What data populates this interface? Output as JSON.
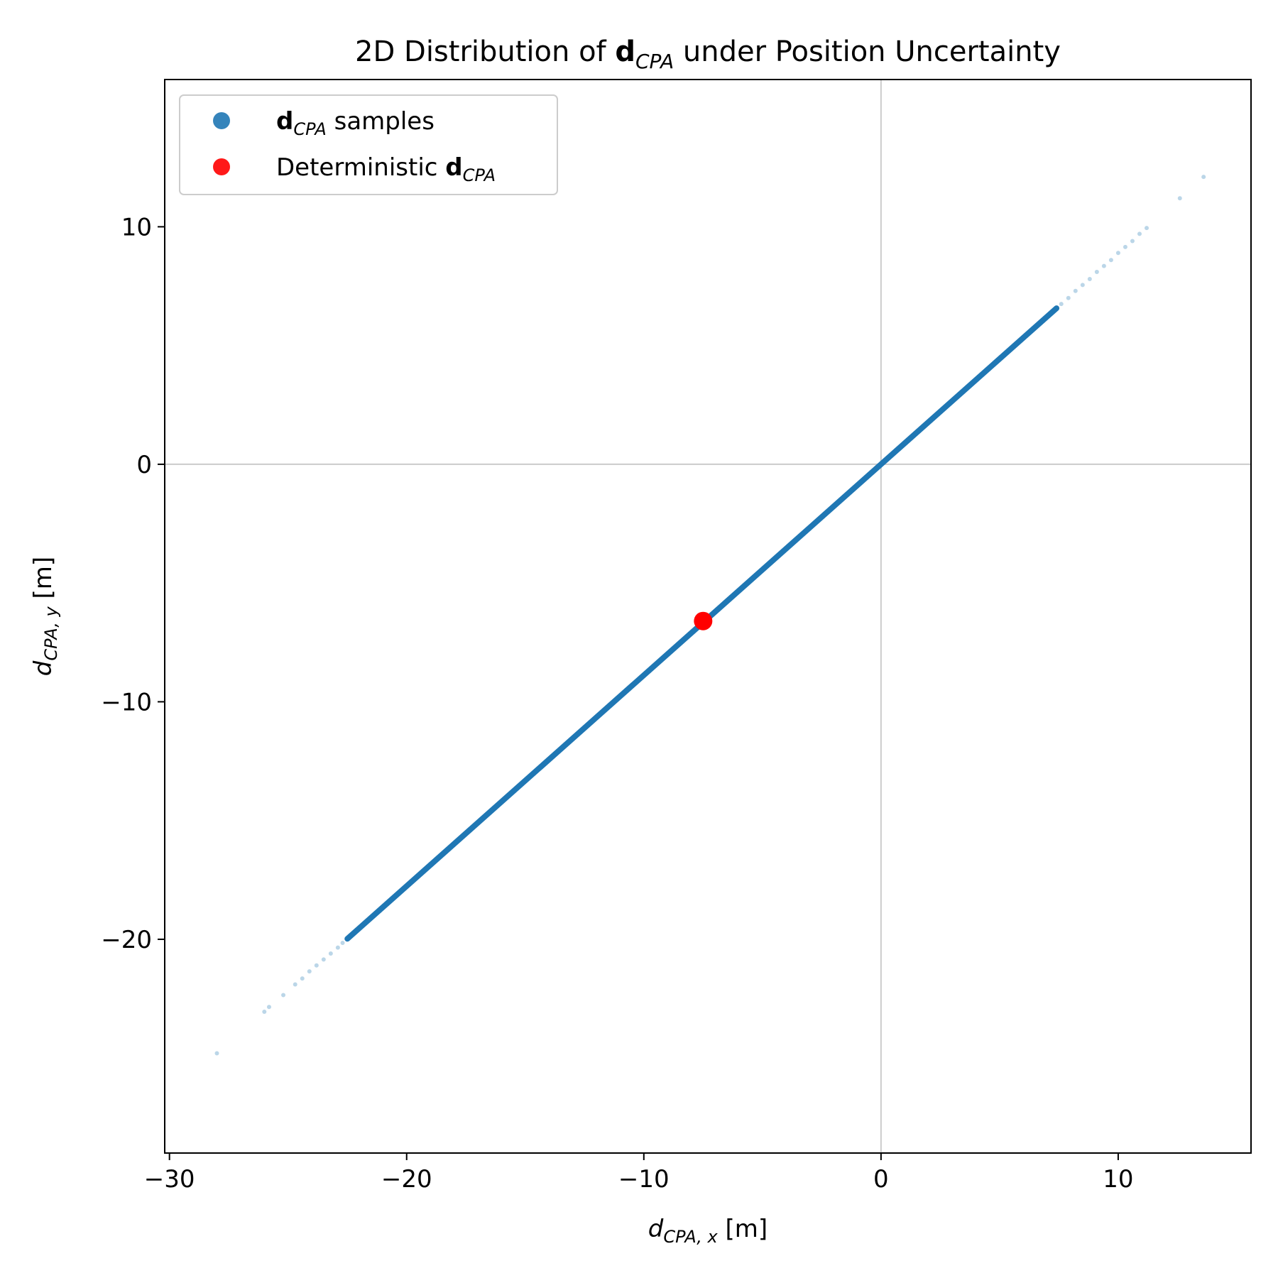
{
  "chart_data": {
    "type": "scatter",
    "title": {
      "prefix": "2D Distribution of ",
      "bold": "d",
      "sub": "CPA",
      "suffix": " under Position Uncertainty"
    },
    "xlabel": {
      "base": "d",
      "sub": "CPA, x",
      "unit": " [m]"
    },
    "ylabel": {
      "base": "d",
      "sub": "CPA, y",
      "unit": " [m]"
    },
    "xlim": [
      -30.2,
      15.6
    ],
    "ylim": [
      -29.0,
      16.2
    ],
    "xticks": [
      {
        "value": -30,
        "label": "−30"
      },
      {
        "value": -20,
        "label": "−20"
      },
      {
        "value": -10,
        "label": "−10"
      },
      {
        "value": 0,
        "label": "0"
      },
      {
        "value": 10,
        "label": "10"
      }
    ],
    "yticks": [
      {
        "value": -20,
        "label": "−20"
      },
      {
        "value": -10,
        "label": "−10"
      },
      {
        "value": 0,
        "label": "0"
      },
      {
        "value": 10,
        "label": "10"
      }
    ],
    "reference_lines": {
      "x": 0,
      "y": 0,
      "color": "#cccccc"
    },
    "grid": false,
    "legend_placement": "upper-left",
    "series": [
      {
        "name": "samples",
        "legend_bold": "d",
        "legend_sub": "CPA",
        "legend_prefix": "",
        "legend_suffix": " samples",
        "color": "#1f77b4",
        "dense_segment": {
          "x_start": -22.5,
          "x_end": 7.4,
          "slope": 0.888
        },
        "sparse_points": [
          [
            -28.0,
            -24.8
          ],
          [
            -26.0,
            -23.05
          ],
          [
            -25.8,
            -22.85
          ],
          [
            -25.2,
            -22.35
          ],
          [
            -24.7,
            -21.9
          ],
          [
            -24.4,
            -21.65
          ],
          [
            -24.1,
            -21.35
          ],
          [
            -23.8,
            -21.1
          ],
          [
            -23.5,
            -20.85
          ],
          [
            -23.2,
            -20.6
          ],
          [
            -22.9,
            -20.35
          ],
          [
            -22.7,
            -20.15
          ],
          [
            7.6,
            6.75
          ],
          [
            7.9,
            7.0
          ],
          [
            8.2,
            7.3
          ],
          [
            8.5,
            7.55
          ],
          [
            8.8,
            7.8
          ],
          [
            9.1,
            8.1
          ],
          [
            9.4,
            8.35
          ],
          [
            9.7,
            8.6
          ],
          [
            10.0,
            8.9
          ],
          [
            10.3,
            9.15
          ],
          [
            10.6,
            9.4
          ],
          [
            10.9,
            9.7
          ],
          [
            11.2,
            9.95
          ],
          [
            12.6,
            11.2
          ],
          [
            13.6,
            12.1
          ]
        ]
      },
      {
        "name": "deterministic",
        "legend_prefix": "Deterministic ",
        "legend_bold": "d",
        "legend_sub": "CPA",
        "legend_suffix": "",
        "color": "#ff0000",
        "points": [
          [
            -7.5,
            -6.6
          ]
        ]
      }
    ]
  }
}
